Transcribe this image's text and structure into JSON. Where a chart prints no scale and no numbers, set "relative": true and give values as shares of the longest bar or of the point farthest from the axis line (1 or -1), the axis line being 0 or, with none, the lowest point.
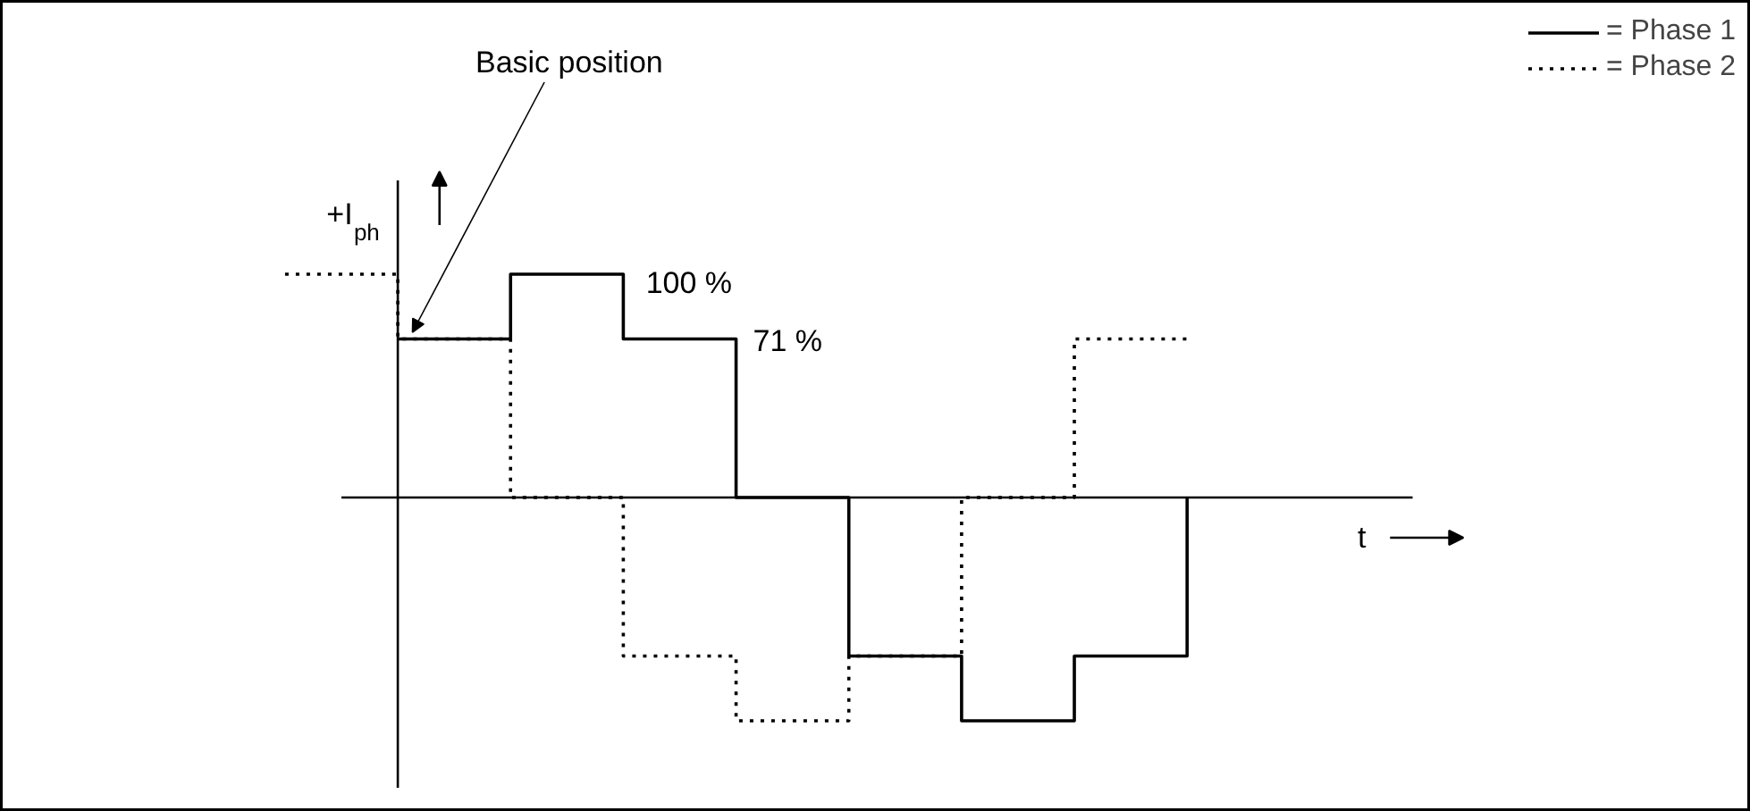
{
  "chart_data": {
    "type": "step",
    "relative": true,
    "xlabel": "t",
    "ylabel": "+I$_{ph}$",
    "categories": [
      null,
      null,
      null,
      null,
      null,
      null,
      null,
      null,
      null
    ],
    "series": [
      {
        "name": "= Phase 1",
        "color": "#000000",
        "line_style": "solid",
        "values": [
          null,
          0.71,
          1,
          0.71,
          0,
          -0.71,
          -1,
          -0.71,
          0
        ]
      },
      {
        "name": "= Phase 2",
        "color": "#000000",
        "line_style": "dotted",
        "values": [
          1,
          0.71,
          0,
          -0.71,
          -1,
          -0.71,
          0,
          0.71,
          0.71
        ]
      }
    ],
    "annotations": [
      "Basic position",
      "100 %",
      "71 %"
    ],
    "legend": "top right"
  }
}
